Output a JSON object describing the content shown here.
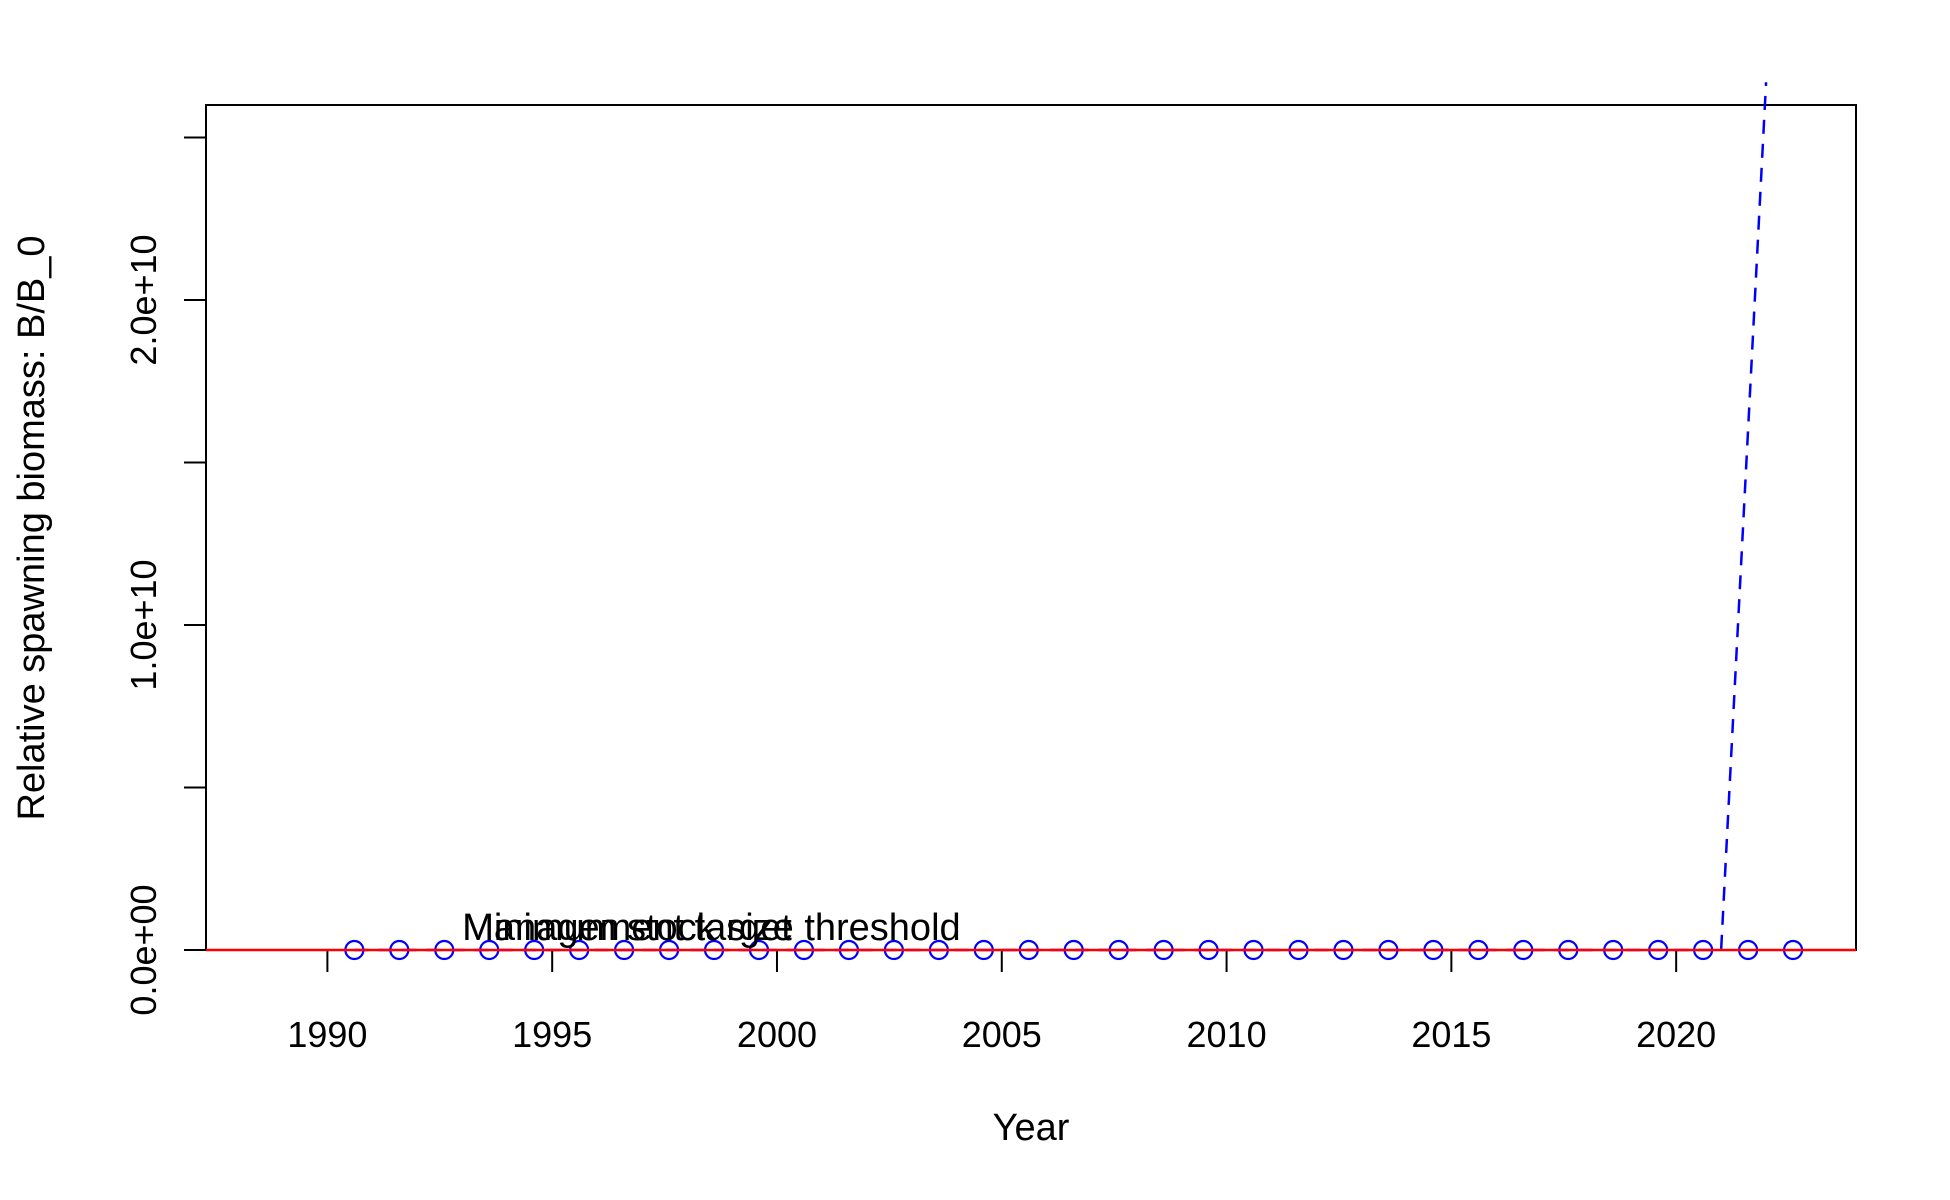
{
  "chart_data": {
    "type": "line",
    "title": "",
    "xlabel": "Year",
    "ylabel": "Relative spawning biomass: B/B_0",
    "xlim": [
      1987.3,
      2024.0
    ],
    "ylim": [
      0,
      26000000000
    ],
    "x_ticks": [
      1990,
      1995,
      2000,
      2005,
      2010,
      2015,
      2020
    ],
    "x_tick_labels": [
      "1990",
      "1995",
      "2000",
      "2005",
      "2010",
      "2015",
      "2020"
    ],
    "y_ticks": [
      0,
      5000000000,
      10000000000,
      15000000000,
      20000000000,
      25000000000
    ],
    "y_tick_labels": [
      "0.0e+00",
      "",
      "1.0e+10",
      "",
      "2.0e+10",
      ""
    ],
    "grid": false,
    "legend": "none",
    "series": [
      {
        "style": "points",
        "marker": "open-circle",
        "color": "#0000ff",
        "x": [
          1990.6,
          1991.6,
          1992.6,
          1993.6,
          1994.6,
          1995.6,
          1996.6,
          1997.6,
          1998.6,
          1999.6,
          2000.6,
          2001.6,
          2002.6,
          2003.6,
          2004.6,
          2005.6,
          2006.6,
          2007.6,
          2008.6,
          2009.6,
          2010.6,
          2011.6,
          2012.6,
          2013.6,
          2014.6,
          2015.6,
          2016.6,
          2017.6,
          2018.6,
          2019.6,
          2020.6,
          2021.6,
          2022.6
        ],
        "y": [
          0,
          0,
          0,
          0,
          0,
          0,
          0,
          0,
          0,
          0,
          0,
          0,
          0,
          0,
          0,
          0,
          0,
          0,
          0,
          0,
          0,
          0,
          0,
          0,
          0,
          0,
          0,
          0,
          0,
          0,
          0,
          0,
          0
        ]
      },
      {
        "style": "dashed-line",
        "color": "#0000ff",
        "x": [
          1990.6,
          2021.0,
          2022.0
        ],
        "y": [
          0,
          0,
          26700000000
        ]
      },
      {
        "style": "solid-line",
        "color": "#ff0000",
        "x": [
          1987.3,
          2024.0
        ],
        "y": [
          0,
          0
        ]
      }
    ],
    "annotations": [
      {
        "text": "Management target",
        "x": 1993.0,
        "y": 0
      },
      {
        "text": "Minimum stock size threshold",
        "x": 1993.0,
        "y": 0
      }
    ]
  }
}
